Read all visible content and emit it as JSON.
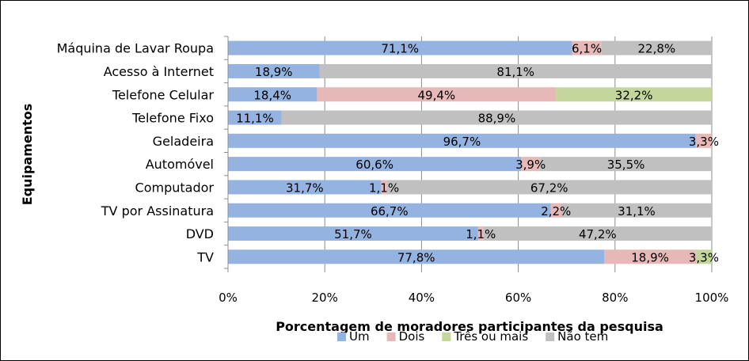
{
  "chart_data": {
    "type": "bar",
    "orientation": "horizontal",
    "stacked": true,
    "percent_stacked": true,
    "xlabel": "Porcentagem de moradores participantes da pesquisa",
    "ylabel": "Equipamentos",
    "xlim": [
      0,
      100
    ],
    "x_ticks": [
      "0%",
      "20%",
      "40%",
      "60%",
      "80%",
      "100%"
    ],
    "grid": true,
    "legend_position": "bottom",
    "categories": [
      "Máquina de Lavar Roupa",
      "Acesso à Internet",
      "Telefone Celular",
      "Telefone Fixo",
      "Geladeira",
      "Automóvel",
      "Computador",
      "TV por Assinatura",
      "DVD",
      "TV"
    ],
    "series": [
      {
        "name": "Um",
        "color": "#95b3e0",
        "values": [
          71.1,
          18.9,
          18.4,
          11.1,
          96.7,
          60.6,
          31.7,
          66.7,
          51.7,
          77.8
        ],
        "labels": [
          "71,1%",
          "18,9%",
          "18,4%",
          "11,1%",
          "96,7%",
          "60,6%",
          "31,7%",
          "66,7%",
          "51,7%",
          "77,8%"
        ]
      },
      {
        "name": "Dois",
        "color": "#e6b8b7",
        "values": [
          6.1,
          0,
          49.4,
          0,
          3.3,
          3.9,
          1.1,
          2.2,
          1.1,
          18.9
        ],
        "labels": [
          "6,1%",
          "",
          "49,4%",
          "",
          "3,3%",
          "3,9%",
          "1,1%",
          "2,2%",
          "1,1%",
          "18,9%"
        ]
      },
      {
        "name": "Três ou mais",
        "color": "#c3d69b",
        "values": [
          0,
          0,
          32.2,
          0,
          0,
          0,
          0,
          0,
          0,
          3.3
        ],
        "labels": [
          "",
          "",
          "32,2%",
          "",
          "",
          "",
          "",
          "",
          "",
          "3,3%"
        ]
      },
      {
        "name": "Não tem",
        "color": "#c0c0c0",
        "values": [
          22.8,
          81.1,
          0,
          88.9,
          0,
          35.5,
          67.2,
          31.1,
          47.2,
          0
        ],
        "labels": [
          "22,8%",
          "81,1%",
          "",
          "88,9%",
          "",
          "35,5%",
          "67,2%",
          "31,1%",
          "47,2%",
          ""
        ]
      }
    ]
  }
}
